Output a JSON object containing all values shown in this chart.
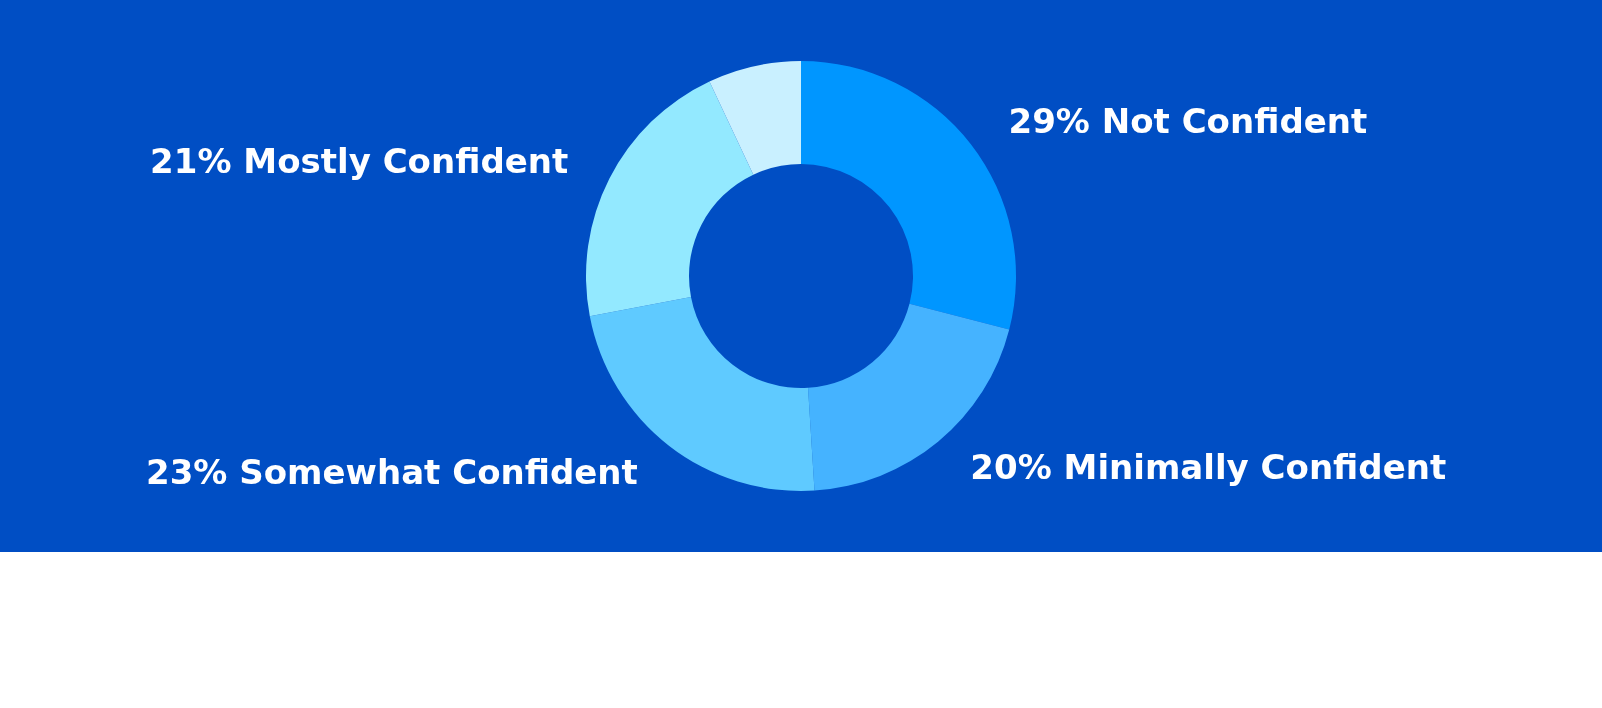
{
  "chart_data": {
    "type": "donut",
    "categories": [
      "Not Confident",
      "Minimally Confident",
      "Somewhat Confident",
      "Mostly Confident",
      null
    ],
    "values": [
      29,
      20,
      23,
      21,
      7
    ],
    "value_labels": [
      "29%",
      "20%",
      "23%",
      "21%",
      null
    ],
    "colors": [
      "#0096ff",
      "#45b3ff",
      "#5fcaff",
      "#93e9ff",
      "#c9f0ff"
    ]
  }
}
